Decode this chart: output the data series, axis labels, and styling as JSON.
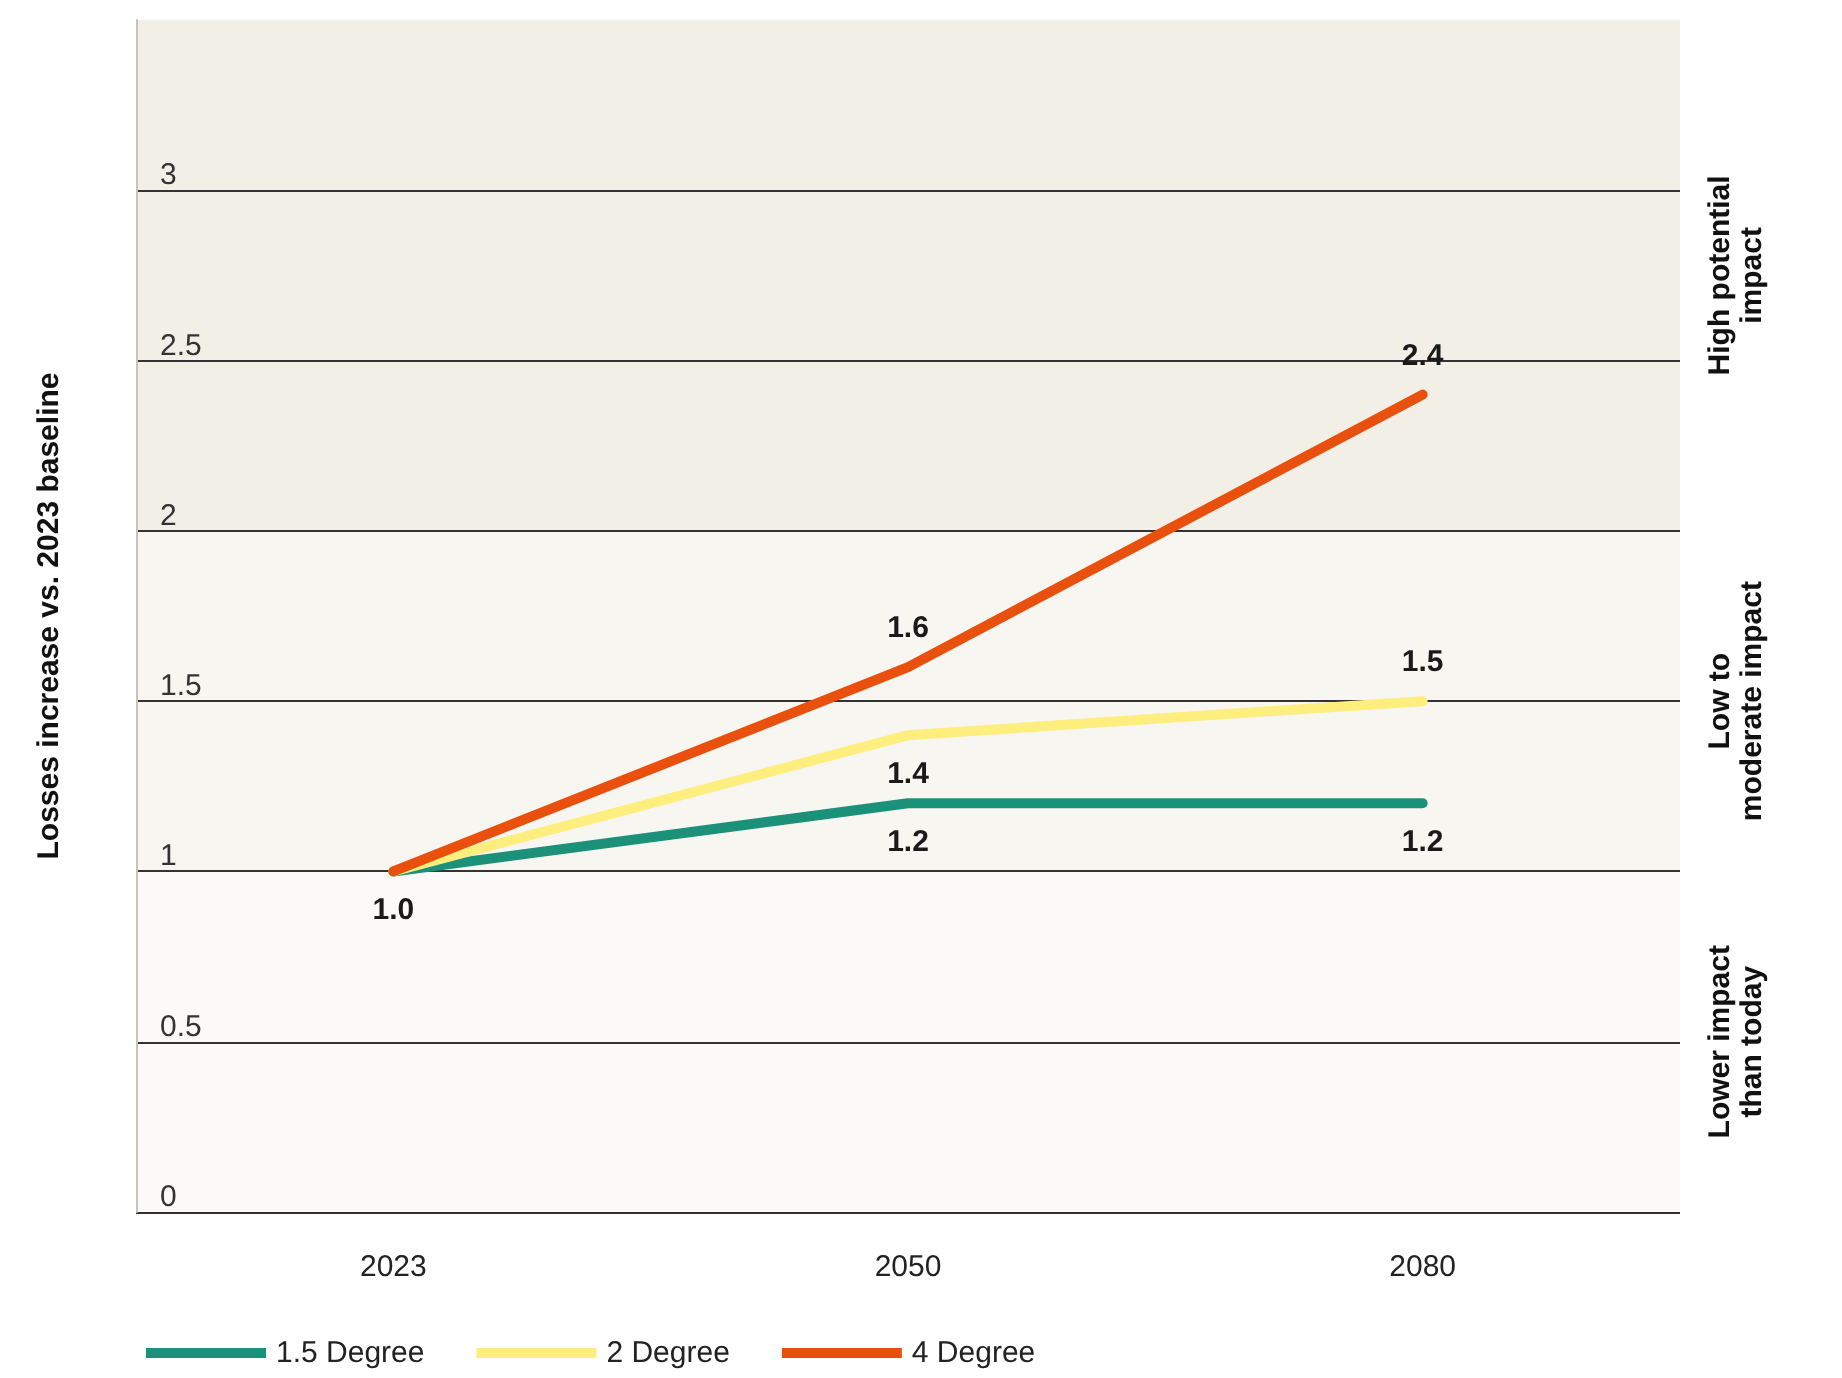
{
  "chart_data": {
    "type": "line",
    "ylabel": "Losses increase vs. 2023 baseline",
    "categories": [
      "2023",
      "2050",
      "2080"
    ],
    "series": [
      {
        "name": "1.5 Degree",
        "color": "#1a9178",
        "values": [
          1.0,
          1.2,
          1.2
        ],
        "value_labels": [
          "1.0",
          "1.2",
          "1.2"
        ]
      },
      {
        "name": "2 Degree",
        "color": "#fdee7d",
        "values": [
          1.0,
          1.4,
          1.5
        ],
        "value_labels": [
          null,
          "1.4",
          "1.5"
        ]
      },
      {
        "name": "4 Degree",
        "color": "#e9500e",
        "values": [
          1.0,
          1.6,
          2.4
        ],
        "value_labels": [
          null,
          "1.6",
          "2.4"
        ]
      }
    ],
    "ylim": [
      0,
      3.5
    ],
    "yticks": [
      0,
      0.5,
      1,
      1.5,
      2,
      2.5,
      3
    ],
    "bands": [
      {
        "axis": "y",
        "from": 2,
        "to": 3.5,
        "label": "High potential impact",
        "color": "#f2efe7"
      },
      {
        "axis": "y",
        "from": 1,
        "to": 2,
        "label": "Low to moderate impact",
        "color": "#f8f6f1"
      },
      {
        "axis": "y",
        "from": 0,
        "to": 1,
        "label": "Lower impact than today",
        "color": "#fbfaf8"
      }
    ],
    "grid": "y",
    "legend": "bottom left",
    "marker": "none",
    "line_style": "solid"
  }
}
